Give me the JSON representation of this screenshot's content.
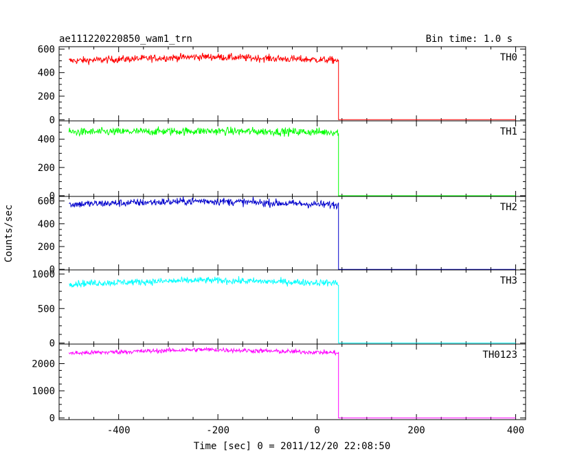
{
  "chart_data": {
    "type": "line",
    "title": "ae111220220850_wam1_trn",
    "bin_time": "Bin time: 1.0 s",
    "xlabel": "Time [sec] 0 = 2011/12/20 22:08:50",
    "ylabel": "Counts/sec",
    "xlim": [
      -520,
      420
    ],
    "x_ticks": [
      -400,
      -200,
      0,
      200,
      400
    ],
    "drop_x": 43,
    "grid": false,
    "panels": [
      {
        "name": "TH0",
        "color": "#ff0000",
        "ylim": [
          -10,
          620
        ],
        "y_ticks": [
          0,
          200,
          400,
          600
        ],
        "series": {
          "x_start": -500,
          "x_end": 43,
          "mean_start": 500,
          "mean_peak": 535,
          "mean_end": 505,
          "noise": 22,
          "after_value": 0
        }
      },
      {
        "name": "TH1",
        "color": "#00ff00",
        "ylim": [
          -5,
          530
        ],
        "y_ticks": [
          0,
          200,
          400
        ],
        "series": {
          "x_start": -500,
          "x_end": 43,
          "mean_start": 450,
          "mean_peak": 458,
          "mean_end": 450,
          "noise": 20,
          "after_value": 0
        }
      },
      {
        "name": "TH2",
        "color": "#0000cc",
        "ylim": [
          -5,
          640
        ],
        "y_ticks": [
          0,
          200,
          400,
          600
        ],
        "series": {
          "x_start": -500,
          "x_end": 43,
          "mean_start": 570,
          "mean_peak": 600,
          "mean_end": 565,
          "noise": 24,
          "after_value": 0
        }
      },
      {
        "name": "TH3",
        "color": "#00ffff",
        "ylim": [
          -15,
          1060
        ],
        "y_ticks": [
          0,
          500,
          1000
        ],
        "series": {
          "x_start": -500,
          "x_end": 43,
          "mean_start": 860,
          "mean_peak": 910,
          "mean_end": 870,
          "noise": 35,
          "after_value": 0
        }
      },
      {
        "name": "TH0123",
        "color": "#ff00ff",
        "ylim": [
          -60,
          2720
        ],
        "y_ticks": [
          0,
          1000,
          2000
        ],
        "series": {
          "x_start": -500,
          "x_end": 43,
          "mean_start": 2380,
          "mean_peak": 2520,
          "mean_end": 2400,
          "noise": 60,
          "after_value": 0
        }
      }
    ]
  }
}
